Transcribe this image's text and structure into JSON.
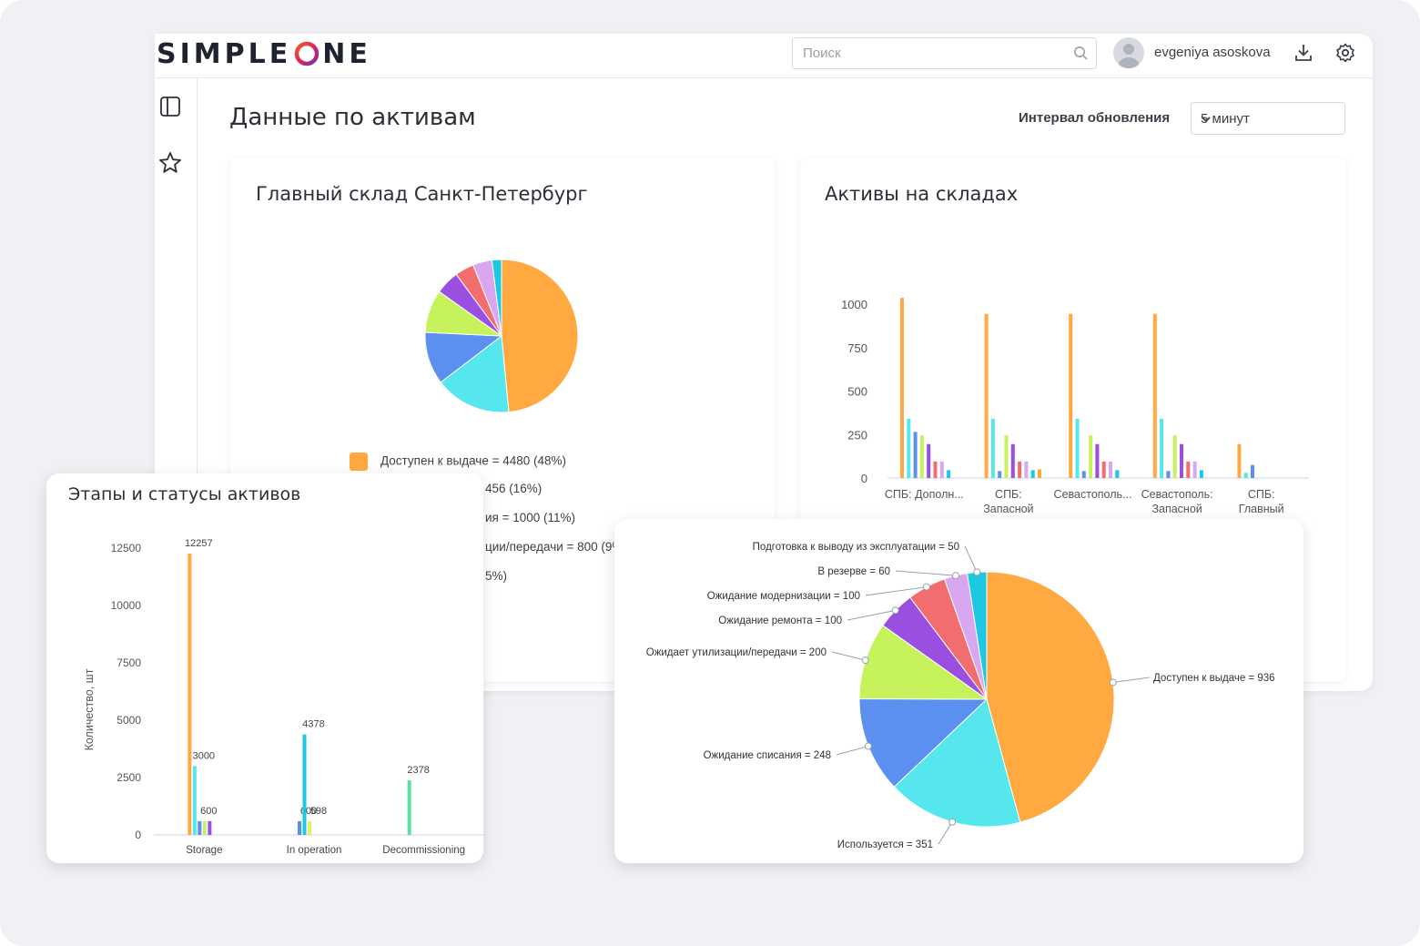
{
  "app": {
    "logo_text_left": "SIMPLE",
    "logo_text_right": "NE",
    "search_placeholder": "Поиск",
    "user_name": "evgeniya asoskova",
    "page_title": "Данные по активам",
    "interval_label": "Интервал обновления",
    "interval_value": "5 минут"
  },
  "colors": {
    "orange": "#ffa940",
    "cyan": "#55e6ee",
    "blue": "#5b8ff0",
    "lime": "#c6f25c",
    "purple": "#9a4fe0",
    "coral": "#f26d6d",
    "lilac": "#d9a6f0",
    "teal": "#1ec8e0",
    "green": "#5ce0a0",
    "darkblue": "#2f6fe6",
    "yellow": "#e8f06a"
  },
  "pie_spb": {
    "title": "Главный склад Санкт-Петербург",
    "legend": [
      {
        "label": "Доступен к выдаче = 4480 (48%)",
        "color": "#ffa940"
      },
      {
        "label": "456 (16%)",
        "color": "#55e6ee"
      },
      {
        "label": "ия = 1000 (11%)",
        "color": "#5b8ff0"
      },
      {
        "label": "ции/передачи = 800 (9%",
        "color": "#c6f25c"
      },
      {
        "label": "5%)",
        "color": "#9a4fe0"
      }
    ],
    "chart_data": {
      "type": "pie",
      "labels": [
        "Доступен к выдаче",
        "",
        "",
        "",
        "",
        "",
        "",
        ""
      ],
      "values": [
        48,
        16,
        11,
        9,
        5,
        4,
        4,
        2
      ],
      "colors": [
        "#ffa940",
        "#55e6ee",
        "#5b8ff0",
        "#c6f25c",
        "#9a4fe0",
        "#f26d6d",
        "#d9a6f0",
        "#1ec8e0"
      ]
    }
  },
  "bar_warehouses": {
    "title": "Активы на складах",
    "chart_data": {
      "type": "bar",
      "categories": [
        [
          "СПБ: Дополн..."
        ],
        [
          "СПБ:",
          "Запасной"
        ],
        [
          "Севастополь..."
        ],
        [
          "Севастополь:",
          "Запасной"
        ],
        [
          "СПБ:",
          "Главный"
        ]
      ],
      "ylim": [
        0,
        1000
      ],
      "yticks": [
        0,
        250,
        500,
        750,
        1000
      ],
      "series": [
        {
          "color": "#ffa940",
          "values": [
            1036,
            944,
            944,
            944,
            195
          ]
        },
        {
          "color": "#55e6ee",
          "values": [
            340,
            340,
            340,
            340,
            30
          ]
        },
        {
          "color": "#5b8ff0",
          "values": [
            265,
            40,
            40,
            40,
            75
          ]
        },
        {
          "color": "#c6f25c",
          "values": [
            245,
            245,
            245,
            245,
            0
          ]
        },
        {
          "color": "#9a4fe0",
          "values": [
            195,
            195,
            195,
            195,
            0
          ]
        },
        {
          "color": "#f26d6d",
          "values": [
            95,
            95,
            95,
            95,
            0
          ]
        },
        {
          "color": "#d9a6f0",
          "values": [
            95,
            95,
            95,
            95,
            0
          ]
        },
        {
          "color": "#1ec8e0",
          "values": [
            45,
            45,
            45,
            45,
            0
          ]
        },
        {
          "color": "#ffa940",
          "values": [
            0,
            50,
            0,
            0,
            0
          ]
        }
      ]
    }
  },
  "stages": {
    "title": "Этапы и статусы активов",
    "chart_data": {
      "type": "bar",
      "categories": [
        "Storage",
        "In operation",
        "Decommissioning"
      ],
      "ylabel": "Количество, шт",
      "ylim": [
        0,
        12500
      ],
      "yticks": [
        0,
        2500,
        5000,
        7500,
        10000,
        12500
      ],
      "series": [
        {
          "color": "#ffa940",
          "values": [
            12257,
            0,
            0
          ],
          "labels": [
            "12257",
            "",
            ""
          ]
        },
        {
          "color": "#55e6ee",
          "values": [
            3000,
            0,
            0
          ],
          "labels": [
            "3000",
            "",
            ""
          ]
        },
        {
          "color": "#5b8ff0",
          "values": [
            600,
            600,
            0
          ],
          "labels": [
            "600",
            "600",
            ""
          ]
        },
        {
          "color": "#c6f25c",
          "values": [
            600,
            0,
            0
          ],
          "labels": [
            "",
            "",
            ""
          ]
        },
        {
          "color": "#9a4fe0",
          "values": [
            600,
            0,
            0
          ],
          "labels": [
            "",
            "",
            ""
          ]
        },
        {
          "color": "#1ec8e0",
          "values": [
            0,
            4378,
            0
          ],
          "labels": [
            "",
            "4378",
            ""
          ]
        },
        {
          "color": "#e8f06a",
          "values": [
            0,
            598,
            0
          ],
          "labels": [
            "",
            "598",
            ""
          ]
        },
        {
          "color": "#5ce0a0",
          "values": [
            0,
            0,
            2378
          ],
          "labels": [
            "",
            "",
            "2378"
          ]
        }
      ]
    }
  },
  "pie_detail": {
    "chart_data": {
      "type": "pie",
      "labels": [
        "Доступен к выдаче = 936",
        "Используется = 351",
        "Ожидание списания = 248",
        "Ожидает утилизации/передачи = 200",
        "Ожидание ремонта = 100",
        "Ожидание модернизации = 100",
        "В резерве = 60",
        "Подготовка к выводу из эксплуатации = 50"
      ],
      "values": [
        936,
        351,
        248,
        200,
        100,
        100,
        60,
        50
      ],
      "colors": [
        "#ffa940",
        "#55e6ee",
        "#5b8ff0",
        "#c6f25c",
        "#9a4fe0",
        "#f26d6d",
        "#d9a6f0",
        "#1ec8e0"
      ]
    }
  }
}
